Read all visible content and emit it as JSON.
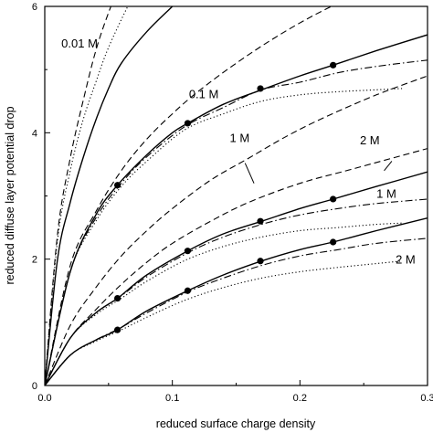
{
  "chart_data": {
    "type": "line",
    "xlabel": "reduced surface charge density",
    "ylabel": "reduced diffuse layer potential drop",
    "xlim": [
      0,
      0.3
    ],
    "ylim": [
      0,
      6
    ],
    "x_ticks": [
      "0.0",
      "0.1",
      "0.2",
      "0.3"
    ],
    "y_ticks": [
      "0",
      "2",
      "4",
      "6"
    ],
    "grid": false,
    "legend": "none",
    "series": [
      {
        "style": "dashed",
        "points": [
          [
            0,
            0
          ],
          [
            0.01,
            2.4
          ],
          [
            0.02,
            3.6
          ],
          [
            0.03,
            4.5
          ],
          [
            0.04,
            5.3
          ],
          [
            0.05,
            5.9
          ],
          [
            0.06,
            6.4
          ]
        ]
      },
      {
        "style": "dotted",
        "points": [
          [
            0,
            0
          ],
          [
            0.01,
            2.3
          ],
          [
            0.02,
            3.4
          ],
          [
            0.03,
            4.2
          ],
          [
            0.04,
            4.8
          ],
          [
            0.05,
            5.35
          ],
          [
            0.065,
            6.0
          ],
          [
            0.08,
            6.6
          ]
        ]
      },
      {
        "style": "solid",
        "points": [
          [
            0,
            0
          ],
          [
            0.01,
            2.0
          ],
          [
            0.02,
            2.9
          ],
          [
            0.03,
            3.6
          ],
          [
            0.04,
            4.2
          ],
          [
            0.05,
            4.7
          ],
          [
            0.06,
            5.1
          ],
          [
            0.08,
            5.6
          ],
          [
            0.1,
            6.0
          ],
          [
            0.115,
            6.3
          ]
        ]
      },
      {
        "style": "dashed",
        "points": [
          [
            0,
            0
          ],
          [
            0.02,
            1.9
          ],
          [
            0.04,
            2.75
          ],
          [
            0.06,
            3.4
          ],
          [
            0.08,
            3.9
          ],
          [
            0.1,
            4.3
          ],
          [
            0.12,
            4.65
          ],
          [
            0.15,
            5.1
          ],
          [
            0.18,
            5.5
          ],
          [
            0.21,
            5.85
          ],
          [
            0.24,
            6.15
          ]
        ]
      },
      {
        "style": "solid",
        "points": [
          [
            0,
            0
          ],
          [
            0.02,
            1.8
          ],
          [
            0.04,
            2.7
          ],
          [
            0.057,
            3.17
          ],
          [
            0.08,
            3.65
          ],
          [
            0.1,
            4.0
          ],
          [
            0.112,
            4.15
          ],
          [
            0.14,
            4.45
          ],
          [
            0.17,
            4.68
          ],
          [
            0.2,
            4.9
          ],
          [
            0.226,
            5.07
          ],
          [
            0.26,
            5.3
          ],
          [
            0.3,
            5.55
          ]
        ]
      },
      {
        "style": "dashdot",
        "points": [
          [
            0,
            0
          ],
          [
            0.02,
            1.8
          ],
          [
            0.04,
            2.65
          ],
          [
            0.06,
            3.2
          ],
          [
            0.08,
            3.62
          ],
          [
            0.11,
            4.1
          ],
          [
            0.14,
            4.4
          ],
          [
            0.17,
            4.68
          ],
          [
            0.2,
            4.8
          ],
          [
            0.23,
            4.95
          ],
          [
            0.26,
            5.05
          ],
          [
            0.3,
            5.15
          ]
        ]
      },
      {
        "style": "dotted",
        "points": [
          [
            0,
            0
          ],
          [
            0.02,
            1.8
          ],
          [
            0.04,
            2.6
          ],
          [
            0.06,
            3.15
          ],
          [
            0.08,
            3.55
          ],
          [
            0.11,
            4.05
          ],
          [
            0.14,
            4.3
          ],
          [
            0.17,
            4.5
          ],
          [
            0.2,
            4.6
          ],
          [
            0.23,
            4.65
          ],
          [
            0.26,
            4.68
          ],
          [
            0.28,
            4.7
          ]
        ]
      },
      {
        "style": "dashed",
        "points": [
          [
            0,
            0
          ],
          [
            0.02,
            0.95
          ],
          [
            0.04,
            1.55
          ],
          [
            0.06,
            2.05
          ],
          [
            0.08,
            2.45
          ],
          [
            0.1,
            2.8
          ],
          [
            0.13,
            3.25
          ],
          [
            0.16,
            3.6
          ],
          [
            0.19,
            3.95
          ],
          [
            0.22,
            4.25
          ],
          [
            0.26,
            4.6
          ],
          [
            0.3,
            4.9
          ]
        ]
      },
      {
        "style": "dashed",
        "points": [
          [
            0,
            0
          ],
          [
            0.02,
            0.75
          ],
          [
            0.04,
            1.2
          ],
          [
            0.06,
            1.6
          ],
          [
            0.08,
            1.95
          ],
          [
            0.1,
            2.25
          ],
          [
            0.13,
            2.6
          ],
          [
            0.16,
            2.9
          ],
          [
            0.2,
            3.2
          ],
          [
            0.24,
            3.42
          ],
          [
            0.3,
            3.75
          ]
        ]
      },
      {
        "style": "solid",
        "points": [
          [
            0,
            0
          ],
          [
            0.02,
            0.75
          ],
          [
            0.04,
            1.15
          ],
          [
            0.057,
            1.38
          ],
          [
            0.08,
            1.75
          ],
          [
            0.112,
            2.13
          ],
          [
            0.14,
            2.4
          ],
          [
            0.17,
            2.6
          ],
          [
            0.2,
            2.8
          ],
          [
            0.226,
            2.95
          ],
          [
            0.26,
            3.15
          ],
          [
            0.3,
            3.38
          ]
        ]
      },
      {
        "style": "dashdot",
        "points": [
          [
            0,
            0
          ],
          [
            0.02,
            0.75
          ],
          [
            0.04,
            1.15
          ],
          [
            0.06,
            1.42
          ],
          [
            0.08,
            1.72
          ],
          [
            0.112,
            2.1
          ],
          [
            0.14,
            2.35
          ],
          [
            0.17,
            2.55
          ],
          [
            0.2,
            2.7
          ],
          [
            0.23,
            2.8
          ],
          [
            0.26,
            2.88
          ],
          [
            0.3,
            2.95
          ]
        ]
      },
      {
        "style": "dotted",
        "points": [
          [
            0,
            0
          ],
          [
            0.02,
            0.75
          ],
          [
            0.04,
            1.12
          ],
          [
            0.06,
            1.38
          ],
          [
            0.08,
            1.65
          ],
          [
            0.11,
            1.98
          ],
          [
            0.14,
            2.2
          ],
          [
            0.17,
            2.35
          ],
          [
            0.2,
            2.45
          ],
          [
            0.23,
            2.5
          ],
          [
            0.26,
            2.55
          ],
          [
            0.28,
            2.57
          ]
        ]
      },
      {
        "style": "solid",
        "points": [
          [
            0,
            0
          ],
          [
            0.02,
            0.48
          ],
          [
            0.04,
            0.72
          ],
          [
            0.057,
            0.88
          ],
          [
            0.08,
            1.18
          ],
          [
            0.112,
            1.5
          ],
          [
            0.14,
            1.75
          ],
          [
            0.17,
            1.97
          ],
          [
            0.2,
            2.15
          ],
          [
            0.226,
            2.27
          ],
          [
            0.26,
            2.45
          ],
          [
            0.3,
            2.65
          ]
        ]
      },
      {
        "style": "dashdot",
        "points": [
          [
            0,
            0
          ],
          [
            0.02,
            0.48
          ],
          [
            0.04,
            0.72
          ],
          [
            0.06,
            0.92
          ],
          [
            0.08,
            1.15
          ],
          [
            0.112,
            1.48
          ],
          [
            0.14,
            1.7
          ],
          [
            0.17,
            1.9
          ],
          [
            0.2,
            2.05
          ],
          [
            0.23,
            2.15
          ],
          [
            0.26,
            2.25
          ],
          [
            0.3,
            2.33
          ]
        ]
      },
      {
        "style": "dotted",
        "points": [
          [
            0,
            0
          ],
          [
            0.02,
            0.48
          ],
          [
            0.04,
            0.7
          ],
          [
            0.06,
            0.88
          ],
          [
            0.08,
            1.08
          ],
          [
            0.11,
            1.35
          ],
          [
            0.14,
            1.55
          ],
          [
            0.17,
            1.7
          ],
          [
            0.2,
            1.8
          ],
          [
            0.23,
            1.87
          ],
          [
            0.26,
            1.93
          ],
          [
            0.28,
            1.97
          ]
        ]
      }
    ],
    "markers": [
      [
        0.057,
        3.17
      ],
      [
        0.112,
        4.15
      ],
      [
        0.169,
        4.7
      ],
      [
        0.226,
        5.07
      ],
      [
        0.057,
        1.38
      ],
      [
        0.112,
        2.13
      ],
      [
        0.169,
        2.6
      ],
      [
        0.226,
        2.95
      ],
      [
        0.057,
        0.88
      ],
      [
        0.112,
        1.5
      ],
      [
        0.169,
        1.97
      ],
      [
        0.226,
        2.27
      ]
    ],
    "annotations": [
      {
        "text": "0.01 M",
        "x": 0.013,
        "y": 5.35
      },
      {
        "text": "0.1 M",
        "x": 0.113,
        "y": 4.55
      },
      {
        "text": "1 M",
        "x": 0.145,
        "y": 3.85
      },
      {
        "text": "2 M",
        "x": 0.247,
        "y": 3.82
      },
      {
        "text": "1 M",
        "x": 0.26,
        "y": 2.97
      },
      {
        "text": "2 M",
        "x": 0.275,
        "y": 1.93
      }
    ],
    "leaders": [
      {
        "from": [
          0.157,
          3.52
        ],
        "to": [
          0.164,
          3.2
        ]
      },
      {
        "from": [
          0.272,
          3.55
        ],
        "to": [
          0.266,
          3.4
        ]
      }
    ]
  }
}
